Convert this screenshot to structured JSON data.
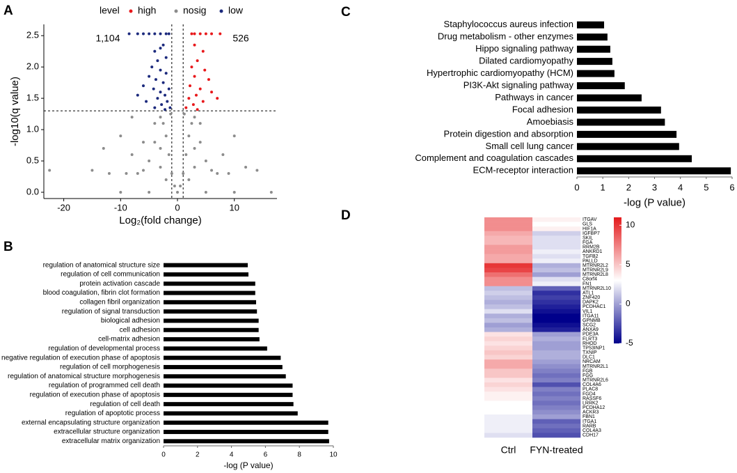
{
  "chart_data": [
    {
      "type": "scatter",
      "panel": "A",
      "xlabel": "Log₂(fold change)",
      "ylabel": "-log10(q value)",
      "legend_title": "level",
      "legend": "top",
      "xlim": [
        -23.5,
        17.5
      ],
      "ylim": [
        -0.1,
        2.68
      ],
      "xticks": [
        -20,
        -10,
        0,
        10
      ],
      "yticks": [
        {
          "value": 0,
          "label": "0.0"
        },
        0.5,
        {
          "value": 1,
          "label": "1.0"
        },
        1.5,
        {
          "value": 2,
          "label": "2.0"
        },
        2.5
      ],
      "thresholds": {
        "x": [
          -1,
          1
        ],
        "y": 1.3
      },
      "annotations": [
        "1,104",
        "526"
      ],
      "series": [
        {
          "name": "high",
          "color": "#e8191c",
          "x": [
            2.5,
            3,
            4,
            5,
            6,
            7.5,
            3,
            4.5,
            3.5,
            2.5,
            4.8,
            3,
            5.5,
            2.2,
            4,
            6,
            3.3,
            2,
            4.5,
            7,
            2.8,
            1.5,
            3.5
          ],
          "y": [
            2.53,
            2.53,
            2.53,
            2.53,
            2.53,
            2.53,
            2.35,
            2.25,
            2.1,
            2.0,
            1.95,
            1.85,
            1.8,
            1.7,
            1.65,
            1.6,
            1.55,
            1.5,
            1.45,
            1.5,
            1.4,
            1.35,
            1.32
          ]
        },
        {
          "name": "nosig",
          "color": "#8c8c8c",
          "x": [
            0,
            -0.5,
            0.5,
            -1,
            1,
            -1.5,
            1.5,
            -2,
            2,
            -2.5,
            2.5,
            -3,
            3,
            -4,
            4,
            -5,
            5,
            -6,
            6,
            -3,
            3,
            -7,
            7,
            -9,
            9,
            -12,
            -15,
            -22.5,
            14,
            -10,
            -5,
            5,
            10,
            16.5,
            -8,
            -6,
            -4,
            4,
            -10,
            10,
            -3,
            3,
            2,
            -2,
            -8,
            8,
            -13,
            12,
            -1.2,
            1.2
          ],
          "y": [
            0,
            0.1,
            0.1,
            0.3,
            0.3,
            0.6,
            0.6,
            0.9,
            0.9,
            1.1,
            1.1,
            1.2,
            1.2,
            0.8,
            0.8,
            0.5,
            0.5,
            0.35,
            0.35,
            0.4,
            0.4,
            0.3,
            0.3,
            0.3,
            0.3,
            0.3,
            0.35,
            0.35,
            0.35,
            0,
            0,
            0,
            0,
            0,
            1.2,
            0.8,
            1.1,
            1.1,
            0.9,
            0.9,
            0.7,
            0.7,
            0.2,
            0.2,
            0.6,
            0.6,
            0.7,
            0.4,
            1.25,
            1.25
          ]
        },
        {
          "name": "low",
          "color": "#1c2a7d",
          "x": [
            -8.5,
            -7,
            -6,
            -5,
            -4,
            -3,
            -2,
            -1.5,
            -3,
            -2.5,
            -4,
            -3.5,
            -2,
            -4.5,
            -3,
            -2,
            -5,
            -3.8,
            -2.5,
            -6,
            -4.2,
            -1.5,
            -3,
            -7,
            -2.2,
            -3.5,
            -5.5,
            -1.8,
            -2.8,
            -4,
            -1.3,
            -2.2
          ],
          "y": [
            2.53,
            2.53,
            2.53,
            2.53,
            2.53,
            2.53,
            2.53,
            2.53,
            2.3,
            2.35,
            2.25,
            2.1,
            2.15,
            2.0,
            1.95,
            1.9,
            1.85,
            1.8,
            1.75,
            1.7,
            1.65,
            1.65,
            1.6,
            1.55,
            1.55,
            1.5,
            1.45,
            1.45,
            1.4,
            1.35,
            1.35,
            1.32
          ]
        }
      ]
    },
    {
      "type": "bar",
      "orientation": "horizontal",
      "panel": "B",
      "xlabel": "-log (P value)",
      "color": "#000000",
      "categories": [
        "regulation of anatomical structure size",
        "regulation of cell communication",
        "protein activation cascade",
        "blood coagulation, fibrin clot formation",
        "collagen fibril organization",
        "regulation of signal transduction",
        "biological adhesion",
        "cell adhesion",
        "cell-matrix adhesion",
        "regulation of developmental process",
        "negative regulation of execution phase of apoptosis",
        "regulation of cell morphogenesis",
        "regulation of anatomical structure morphogenesis",
        "regulation of programmed cell death",
        "regulation of execution phase of apoptosis",
        "regulation of cell death",
        "regulation of apoptotic process",
        "external encapsulating structure organization",
        "extracellular structure organization",
        "extracellular matrix organization"
      ],
      "values": [
        4.96,
        5.0,
        5.4,
        5.4,
        5.45,
        5.5,
        5.6,
        5.6,
        5.65,
        6.1,
        6.9,
        7.0,
        7.2,
        7.6,
        7.6,
        7.65,
        7.9,
        9.7,
        9.7,
        9.75
      ],
      "xlim": [
        0,
        10
      ],
      "xticks": [
        0,
        2,
        4,
        6,
        8,
        10
      ]
    },
    {
      "type": "bar",
      "orientation": "horizontal",
      "panel": "C",
      "xlabel": "-log (P value)",
      "color": "#000000",
      "categories": [
        "Staphylococcus aureus infection",
        "Drug metabolism - other enzymes",
        "Hippo signaling pathway",
        "Dilated cardiomyopathy",
        "Hypertrophic cardiomyopathy (HCM)",
        "PI3K-Akt signaling pathway",
        "Pathways in cancer",
        "Focal adhesion",
        "Amoebiasis",
        "Protein digestion and absorption",
        "Small cell lung cancer",
        "Complement and coagulation cascades",
        "ECM-receptor interaction"
      ],
      "values": [
        1.05,
        1.18,
        1.29,
        1.37,
        1.45,
        1.85,
        2.5,
        3.25,
        3.4,
        3.85,
        3.95,
        4.44,
        5.95
      ],
      "xlim": [
        0,
        6
      ],
      "xticks": [
        0,
        1,
        2,
        3,
        4,
        5,
        6
      ]
    },
    {
      "type": "heatmap",
      "panel": "D",
      "columns": [
        "Ctrl",
        "FYN-treated"
      ],
      "rows": [
        "ITGAV",
        "GLS",
        "HIF1A",
        "IGFBP7",
        "SKIL",
        "FGA",
        "RRM2B",
        "ANKRD1",
        "TGFB2",
        "PALLD",
        "MTRNR2L2",
        "MTRNR2L9",
        "MTRNR2L8",
        "C8orf4",
        "FN1",
        "MTRNR2L10",
        "ATL1",
        "ZNF420",
        "DAPK2",
        "PCDHAC1",
        "VIL1",
        "ITGA11",
        "GPNMB",
        "SCG2",
        "ANXA9",
        "PDE3A",
        "FLRT3",
        "RHOD",
        "TP53INP1",
        "TXNIP",
        "DLC1",
        "NRCAM",
        "MTRNR2L1",
        "FGB",
        "FGG",
        "MTRNR2L6",
        "COL4A6",
        "PLAC8",
        "FGD4",
        "RASSF6",
        "LRRK2",
        "PCDHA12",
        "ACKR3",
        "FBN1",
        "ITGA1",
        "RARB",
        "COL4A3",
        "CDH17"
      ],
      "values": [
        [
          7,
          3.5
        ],
        [
          7,
          3
        ],
        [
          7,
          3.5
        ],
        [
          6,
          1.5
        ],
        [
          5.5,
          2
        ],
        [
          5.5,
          2
        ],
        [
          6.5,
          2
        ],
        [
          6.5,
          2.5
        ],
        [
          6,
          2
        ],
        [
          6,
          2.5
        ],
        [
          10,
          0.5
        ],
        [
          9.5,
          1
        ],
        [
          8,
          0
        ],
        [
          7,
          2
        ],
        [
          7,
          2.5
        ],
        [
          1,
          -2
        ],
        [
          1.5,
          -3.5
        ],
        [
          1,
          -3
        ],
        [
          0.5,
          -3.5
        ],
        [
          1,
          -4
        ],
        [
          2,
          -4.5
        ],
        [
          0.5,
          -5
        ],
        [
          1,
          -5
        ],
        [
          0,
          -4.5
        ],
        [
          0.5,
          -4
        ],
        [
          4,
          0
        ],
        [
          4.5,
          0.5
        ],
        [
          4,
          0
        ],
        [
          4.5,
          0
        ],
        [
          5,
          0.5
        ],
        [
          4.5,
          0.5
        ],
        [
          6,
          0
        ],
        [
          6,
          -0.5
        ],
        [
          5,
          -1
        ],
        [
          5,
          -1.5
        ],
        [
          4,
          -1
        ],
        [
          4.5,
          -2.5
        ],
        [
          4,
          -1
        ],
        [
          3.5,
          -1.5
        ],
        [
          3.5,
          -1
        ],
        [
          3,
          -1.5
        ],
        [
          3,
          -1
        ],
        [
          3,
          -0.5
        ],
        [
          2.5,
          0
        ],
        [
          2.5,
          -2
        ],
        [
          2.5,
          -1.5
        ],
        [
          2.5,
          -2
        ],
        [
          2,
          -2.5
        ]
      ],
      "clim": [
        -5,
        11
      ],
      "cticks": [
        -5,
        0,
        5,
        10
      ],
      "colors": {
        "low": "#00008b",
        "mid": "#ffffff",
        "high": "#e41a1c"
      }
    }
  ]
}
